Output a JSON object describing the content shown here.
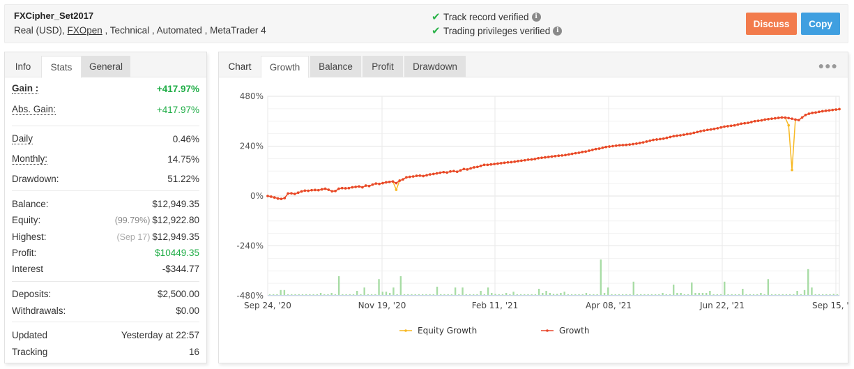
{
  "header": {
    "title": "FXCipher_Set2017",
    "subtitle_prefix": "Real (USD), ",
    "broker_link": "FXOpen",
    "subtitle_suffix": " , Technical , Automated , MetaTrader 4",
    "verifications": [
      {
        "label": "Track record verified",
        "icon": "check-icon"
      },
      {
        "label": "Trading privileges verified",
        "icon": "check-icon"
      }
    ],
    "buttons": {
      "discuss": "Discuss",
      "copy": "Copy"
    },
    "colors": {
      "discuss": "#f27b4c",
      "copy": "#3f9fe0",
      "check": "#2cb34a"
    }
  },
  "stats_panel": {
    "tabs": [
      {
        "label": "Info",
        "state": "plain"
      },
      {
        "label": "Stats",
        "state": "active"
      },
      {
        "label": "General",
        "state": "grey"
      }
    ],
    "rows": {
      "gain": {
        "label": "Gain :",
        "value": "+417.97%"
      },
      "abs_gain": {
        "label": "Abs. Gain:",
        "value": "+417.97%"
      },
      "daily": {
        "label": "Daily",
        "value": "0.46%"
      },
      "monthly": {
        "label": "Monthly:",
        "value": "14.75%"
      },
      "drawdown": {
        "label": "Drawdown:",
        "value": "51.22%"
      },
      "balance": {
        "label": "Balance:",
        "value": "$12,949.35"
      },
      "equity": {
        "label": "Equity:",
        "note": "(99.79%)",
        "value": "$12,922.80"
      },
      "highest": {
        "label": "Highest:",
        "note": "(Sep 17)",
        "value": "$12,949.35"
      },
      "profit": {
        "label": "Profit:",
        "value": "$10449.35"
      },
      "interest": {
        "label": "Interest",
        "value": "-$344.77"
      },
      "deposits": {
        "label": "Deposits:",
        "value": "$2,500.00"
      },
      "withdrawals": {
        "label": "Withdrawals:",
        "value": "$0.00"
      },
      "updated": {
        "label": "Updated",
        "value": "Yesterday at 22:57"
      },
      "tracking": {
        "label": "Tracking",
        "value": "16"
      }
    }
  },
  "chart_panel": {
    "tabs": [
      {
        "label": "Chart",
        "state": "label"
      },
      {
        "label": "Growth",
        "state": "active"
      },
      {
        "label": "Balance",
        "state": "grey"
      },
      {
        "label": "Profit",
        "state": "grey"
      },
      {
        "label": "Drawdown",
        "state": "grey"
      }
    ],
    "menu_icon": "more-dots-icon"
  },
  "chart_data": {
    "type": "line",
    "title": "",
    "xlabel": "",
    "ylabel": "",
    "ylim": [
      -480,
      480
    ],
    "yticks": [
      "480%",
      "240%",
      "0%",
      "-240%",
      "-480%"
    ],
    "xticks": [
      "Sep 24, '20",
      "Nov 19, '20",
      "Feb 11, '21",
      "Apr 08, '21",
      "Jun 22, '21",
      "Sep 15, '21"
    ],
    "grid": true,
    "legend_position": "bottom",
    "colors": {
      "growth": "#e8472b",
      "equity": "#f7b924",
      "volume": "#a8dca5"
    },
    "series": [
      {
        "name": "Growth",
        "values": [
          0,
          -3,
          -7,
          -12,
          -14,
          -10,
          12,
          13,
          10,
          16,
          22,
          26,
          25,
          28,
          29,
          28,
          32,
          35,
          30,
          23,
          24,
          35,
          38,
          37,
          38,
          42,
          44,
          46,
          42,
          50,
          48,
          55,
          60,
          58,
          62,
          66,
          68,
          70,
          62,
          74,
          80,
          90,
          92,
          94,
          97,
          98,
          96,
          100,
          104,
          106,
          109,
          112,
          115,
          113,
          118,
          120,
          117,
          123,
          130,
          128,
          133,
          138,
          140,
          145,
          150,
          150,
          152,
          154,
          156,
          158,
          160,
          162,
          163,
          165,
          168,
          170,
          172,
          175,
          176,
          178,
          182,
          184,
          186,
          188,
          190,
          192,
          194,
          195,
          197,
          200,
          203,
          206,
          208,
          212,
          214,
          218,
          222,
          226,
          228,
          232,
          236,
          238,
          240,
          242,
          244,
          245,
          246,
          248,
          250,
          252,
          255,
          258,
          262,
          266,
          270,
          272,
          274,
          276,
          280,
          284,
          288,
          290,
          292,
          295,
          298,
          300,
          304,
          308,
          312,
          315,
          318,
          320,
          323,
          326,
          330,
          334,
          336,
          338,
          340,
          344,
          348,
          350,
          352,
          356,
          360,
          362,
          364,
          368,
          370,
          372,
          374,
          376,
          378,
          377,
          375,
          372,
          368,
          365,
          378,
          390,
          396,
          400,
          402,
          405,
          408,
          410,
          412,
          414,
          416,
          418
        ]
      },
      {
        "name": "Equity Growth",
        "note": "Tracks Growth closely; visible dips at ~Nov 26 '20 (~30%) and ~Sep '21 (~125%)",
        "dips": [
          {
            "index": 38,
            "value": 30
          },
          {
            "index": 154,
            "value": 340
          },
          {
            "index": 155,
            "value": 125
          }
        ]
      }
    ],
    "volume_bars": [
      2,
      2,
      2,
      12,
      12,
      2,
      2,
      2,
      2,
      2,
      2,
      2,
      2,
      2,
      5,
      2,
      2,
      5,
      2,
      45,
      2,
      2,
      2,
      2,
      10,
      2,
      18,
      2,
      2,
      2,
      38,
      8,
      8,
      5,
      18,
      2,
      45,
      2,
      2,
      2,
      2,
      2,
      2,
      2,
      2,
      2,
      20,
      2,
      2,
      2,
      2,
      18,
      2,
      18,
      2,
      2,
      2,
      2,
      10,
      2,
      18,
      5,
      3,
      2,
      2,
      5,
      2,
      8,
      2,
      2,
      2,
      2,
      2,
      2,
      15,
      5,
      10,
      5,
      3,
      3,
      5,
      8,
      2,
      2,
      2,
      2,
      2,
      5,
      2,
      2,
      2,
      85,
      5,
      18,
      2,
      2,
      2,
      2,
      2,
      2,
      32,
      2,
      2,
      2,
      2,
      2,
      2,
      2,
      5,
      2,
      2,
      25,
      5,
      5,
      2,
      2,
      30,
      5,
      5,
      5,
      5,
      10,
      2,
      2,
      2,
      32,
      2,
      2,
      2,
      2,
      15,
      2,
      2,
      2,
      2,
      5,
      2,
      38,
      2,
      2,
      2,
      2,
      2,
      2,
      2,
      10,
      2,
      12,
      62,
      18,
      2,
      2,
      2,
      2,
      2,
      3,
      2
    ]
  },
  "legend": [
    {
      "label": "Equity Growth",
      "color": "#f7b924"
    },
    {
      "label": "Growth",
      "color": "#e8472b"
    }
  ]
}
